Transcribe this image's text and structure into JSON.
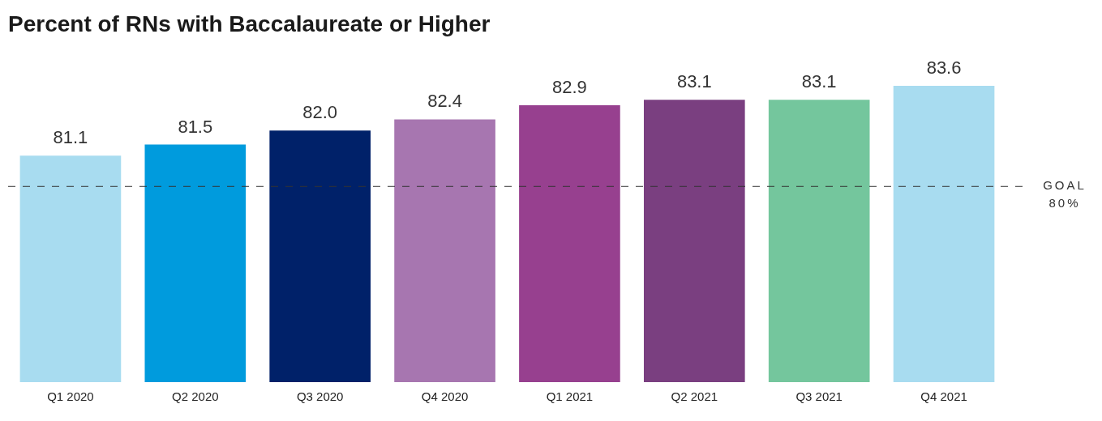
{
  "chart_data": {
    "type": "bar",
    "title": "Percent of RNs with Baccalaureate or Higher",
    "categories": [
      "Q1 2020",
      "Q2 2020",
      "Q3 2020",
      "Q4 2020",
      "Q1 2021",
      "Q2 2021",
      "Q3 2021",
      "Q4 2021"
    ],
    "values": [
      81.1,
      81.5,
      82.0,
      82.4,
      82.9,
      83.1,
      83.1,
      83.6
    ],
    "value_labels": [
      "81.1",
      "81.5",
      "82.0",
      "82.4",
      "82.9",
      "83.1",
      "83.1",
      "83.6"
    ],
    "colors": [
      "#a8dcf0",
      "#009bdd",
      "#002169",
      "#a776b0",
      "#97408f",
      "#7a3f80",
      "#74c69d",
      "#a8dcf0"
    ],
    "ylim": [
      73,
      85
    ],
    "grid": false,
    "data_labels": true,
    "tick_labels": "x",
    "goal_line": {
      "value": 80,
      "label": "GOAL",
      "value_label": "80%"
    }
  }
}
